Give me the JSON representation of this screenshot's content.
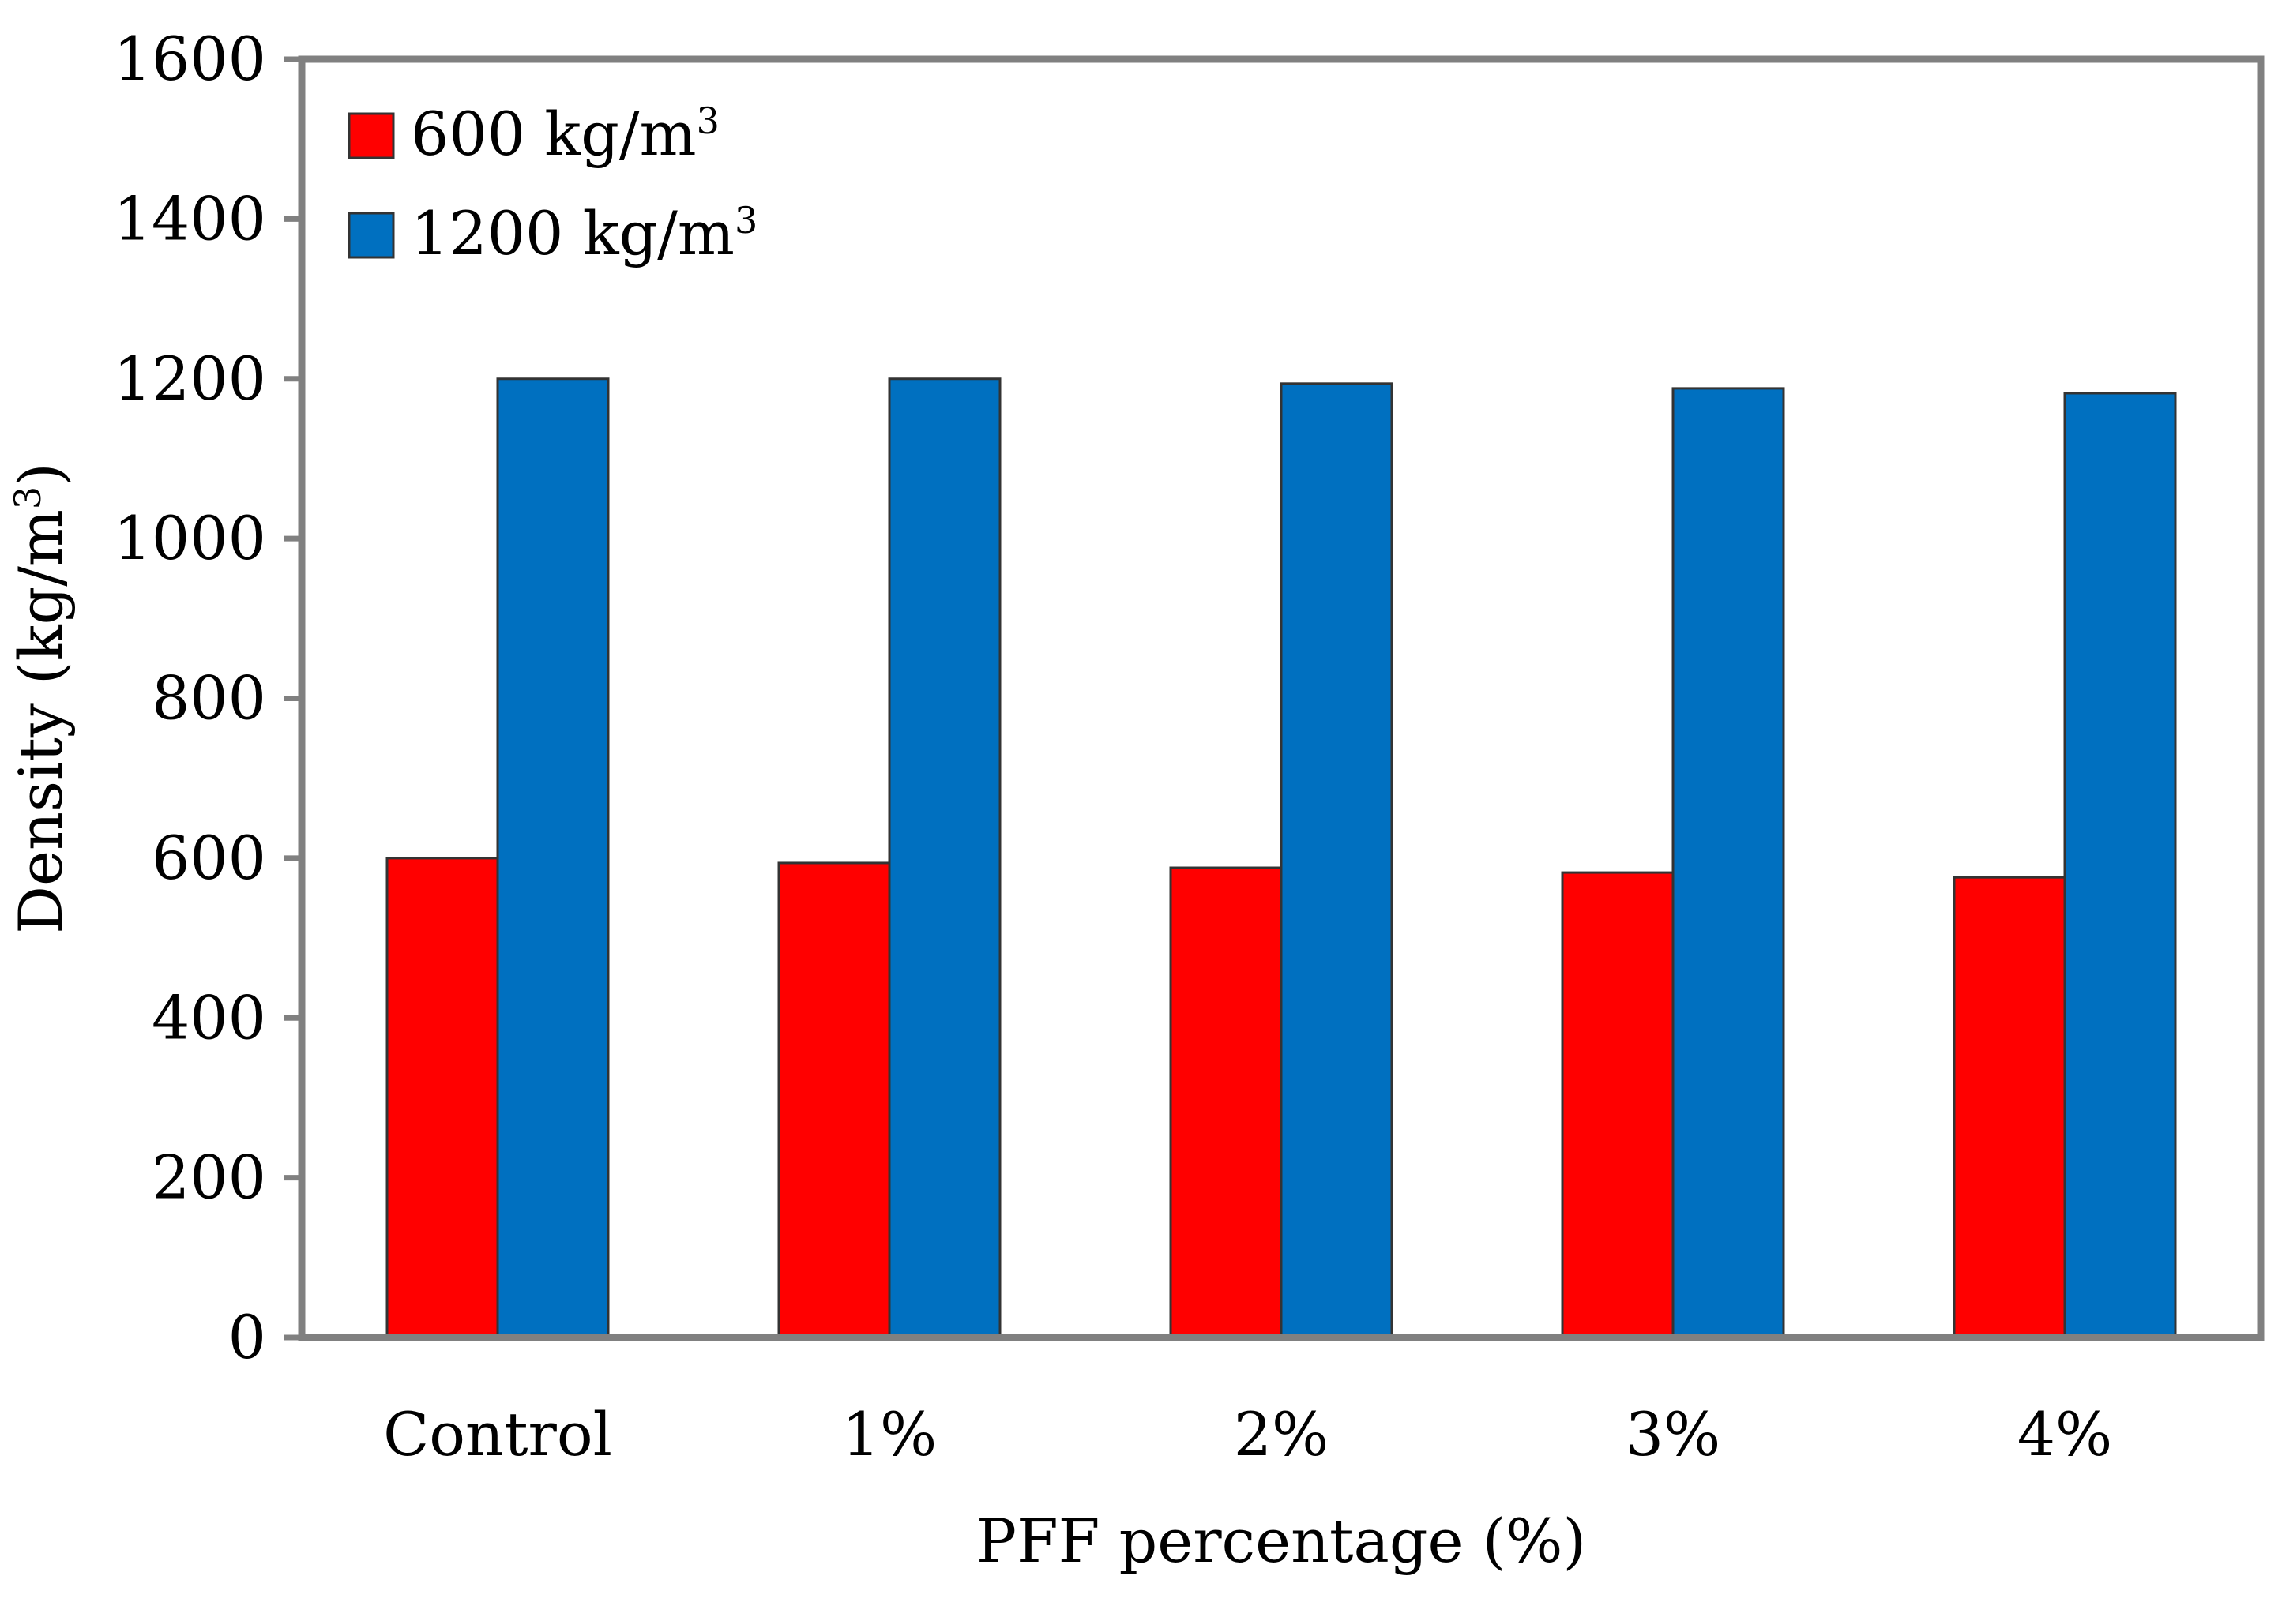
{
  "chart_data": {
    "type": "bar",
    "title": "",
    "xlabel": "PFF percentage (%)",
    "ylabel_prefix": "Density (kg/m",
    "ylabel_sup": "3",
    "ylabel_suffix": ")",
    "ylim": [
      0,
      1600
    ],
    "yticks": [
      "0",
      "200",
      "400",
      "600",
      "800",
      "1000",
      "1200",
      "1400",
      "1600"
    ],
    "categories": [
      "Control",
      "1%",
      "2%",
      "3%",
      "4%"
    ],
    "grid": false,
    "legend_position": "top-left",
    "series": [
      {
        "name": "600 kg/m",
        "sup": "3",
        "color": "#ff0000",
        "values": [
          600,
          594,
          588,
          582,
          576
        ]
      },
      {
        "name": "1200 kg/m",
        "sup": "3",
        "color": "#0070c0",
        "values": [
          1200,
          1200,
          1194,
          1188,
          1182
        ]
      }
    ],
    "axis_color": "#808080",
    "bar_edge_color": "#333333"
  }
}
